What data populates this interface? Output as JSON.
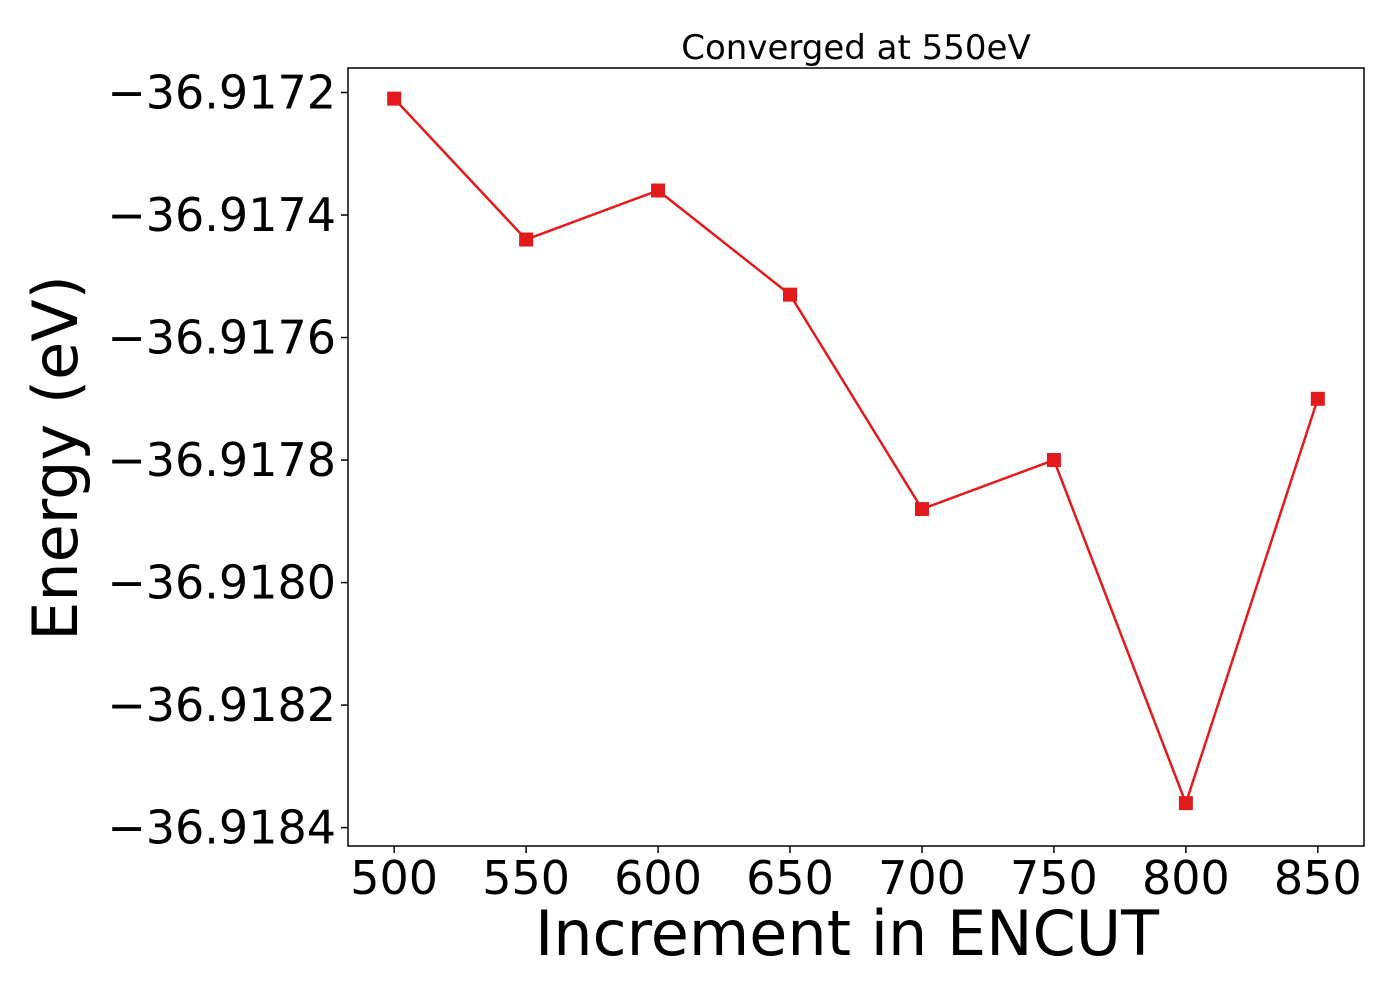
{
  "chart_data": {
    "type": "line",
    "title": "Converged at 550eV",
    "xlabel": "Increment in ENCUT",
    "ylabel": "Energy (eV)",
    "x": [
      500,
      550,
      600,
      650,
      700,
      750,
      800,
      850
    ],
    "xticks": [
      500,
      550,
      600,
      650,
      700,
      750,
      800,
      850
    ],
    "xtick_labels": [
      "500",
      "550",
      "600",
      "650",
      "700",
      "750",
      "800",
      "850"
    ],
    "yticks": [
      -36.9172,
      -36.9174,
      -36.9176,
      -36.9178,
      -36.918,
      -36.9182,
      -36.9184
    ],
    "ytick_labels": [
      "−36.9172",
      "−36.9174",
      "−36.9176",
      "−36.9178",
      "−36.9180",
      "−36.9182",
      "−36.9184"
    ],
    "xlim": [
      482.5,
      867.5
    ],
    "ylim": [
      -36.91843,
      -36.91716
    ],
    "grid": false,
    "series": [
      {
        "values": [
          -36.91721,
          -36.91744,
          -36.91736,
          -36.91753,
          -36.91788,
          -36.9178,
          -36.91836,
          -36.9177
        ],
        "color": "#e31a1c",
        "marker": "square"
      }
    ]
  }
}
